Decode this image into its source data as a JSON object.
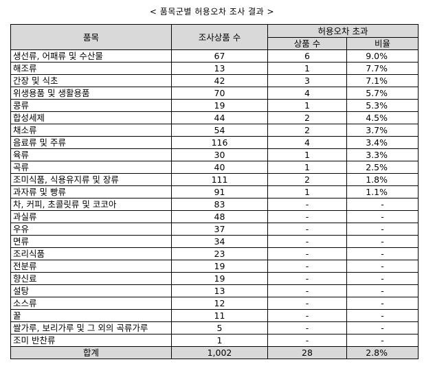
{
  "title": "< 품목군별 허용오차 조사 결과 >",
  "headers": {
    "item": "품목",
    "surveyed": "조사상품 수",
    "exceed_group": "허용오차 초과",
    "exceed_count": "상품 수",
    "ratio": "비율"
  },
  "rows": [
    {
      "item": "생선류, 어패류 및 수산물",
      "surveyed": "67",
      "exceed": "6",
      "ratio": "9.0%"
    },
    {
      "item": "해조류",
      "surveyed": "13",
      "exceed": "1",
      "ratio": "7.7%"
    },
    {
      "item": "간장 및 식초",
      "surveyed": "42",
      "exceed": "3",
      "ratio": "7.1%"
    },
    {
      "item": "위생용품 및 생활용품",
      "surveyed": "70",
      "exceed": "4",
      "ratio": "5.7%"
    },
    {
      "item": "콩류",
      "surveyed": "19",
      "exceed": "1",
      "ratio": "5.3%"
    },
    {
      "item": "합성세제",
      "surveyed": "44",
      "exceed": "2",
      "ratio": "4.5%"
    },
    {
      "item": "채소류",
      "surveyed": "54",
      "exceed": "2",
      "ratio": "3.7%"
    },
    {
      "item": "음료류 및 주류",
      "surveyed": "116",
      "exceed": "4",
      "ratio": "3.4%"
    },
    {
      "item": "육류",
      "surveyed": "30",
      "exceed": "1",
      "ratio": "3.3%"
    },
    {
      "item": "곡류",
      "surveyed": "40",
      "exceed": "1",
      "ratio": "2.5%"
    },
    {
      "item": "조미식품, 식용유지류 및 장류",
      "surveyed": "111",
      "exceed": "2",
      "ratio": "1.8%"
    },
    {
      "item": "과자류 및 빵류",
      "surveyed": "91",
      "exceed": "1",
      "ratio": "1.1%"
    },
    {
      "item": "차, 커피, 초콜릿류 및 코코아",
      "surveyed": "83",
      "exceed": "-",
      "ratio": "-"
    },
    {
      "item": "과실류",
      "surveyed": "48",
      "exceed": "-",
      "ratio": "-"
    },
    {
      "item": "우유",
      "surveyed": "37",
      "exceed": "-",
      "ratio": "-"
    },
    {
      "item": "면류",
      "surveyed": "34",
      "exceed": "-",
      "ratio": "-"
    },
    {
      "item": "조리식품",
      "surveyed": "23",
      "exceed": "-",
      "ratio": "-"
    },
    {
      "item": "전분류",
      "surveyed": "19",
      "exceed": "-",
      "ratio": "-"
    },
    {
      "item": "향신료",
      "surveyed": "19",
      "exceed": "-",
      "ratio": "-"
    },
    {
      "item": "설탕",
      "surveyed": "13",
      "exceed": "-",
      "ratio": "-"
    },
    {
      "item": "소스류",
      "surveyed": "12",
      "exceed": "-",
      "ratio": "-"
    },
    {
      "item": "꿀",
      "surveyed": "11",
      "exceed": "-",
      "ratio": "-"
    },
    {
      "item": "쌀가루, 보리가루 및 그 외의 곡류가루",
      "surveyed": "5",
      "exceed": "-",
      "ratio": "-"
    },
    {
      "item": "조미 반찬류",
      "surveyed": "1",
      "exceed": "-",
      "ratio": "-"
    }
  ],
  "total": {
    "item": "합계",
    "surveyed": "1,002",
    "exceed": "28",
    "ratio": "2.8%"
  }
}
